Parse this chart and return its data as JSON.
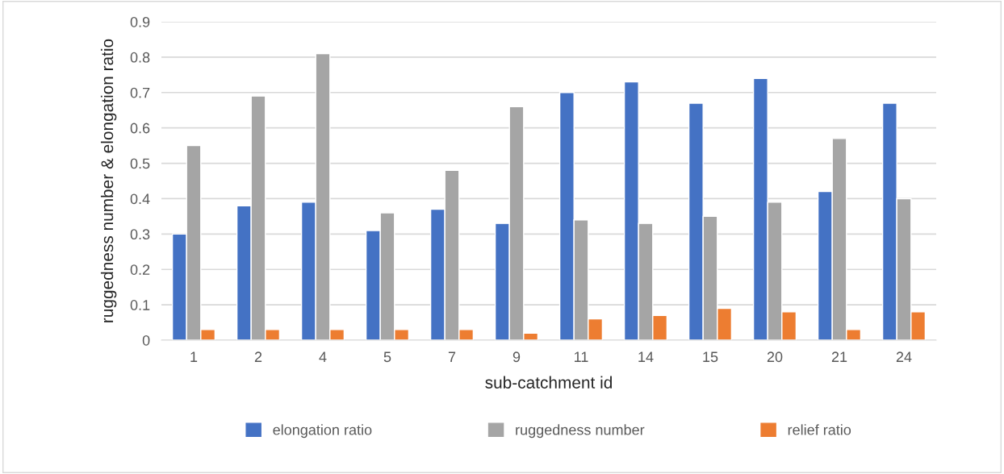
{
  "chart_data": {
    "type": "bar",
    "xlabel": "sub-catchment id",
    "ylabel": "ruggedness number & elongation ratio",
    "categories": [
      "1",
      "2",
      "4",
      "5",
      "7",
      "9",
      "11",
      "14",
      "15",
      "20",
      "21",
      "24"
    ],
    "series": [
      {
        "name": "elongation ratio",
        "color": "#4472c4",
        "values": [
          0.3,
          0.38,
          0.39,
          0.31,
          0.37,
          0.33,
          0.7,
          0.73,
          0.67,
          0.74,
          0.42,
          0.67
        ]
      },
      {
        "name": "ruggedness number",
        "color": "#a5a5a5",
        "values": [
          0.55,
          0.69,
          0.81,
          0.36,
          0.48,
          0.66,
          0.34,
          0.33,
          0.35,
          0.39,
          0.57,
          0.4
        ]
      },
      {
        "name": "relief ratio",
        "color": "#ed7d31",
        "values": [
          0.03,
          0.03,
          0.03,
          0.03,
          0.03,
          0.02,
          0.06,
          0.07,
          0.09,
          0.08,
          0.03,
          0.08
        ]
      }
    ],
    "ylim": [
      0,
      0.9
    ],
    "yticks": [
      0,
      0.1,
      0.2,
      0.3,
      0.4,
      0.5,
      0.6,
      0.7,
      0.8,
      0.9
    ],
    "grid": "y",
    "legend": "bottom"
  }
}
